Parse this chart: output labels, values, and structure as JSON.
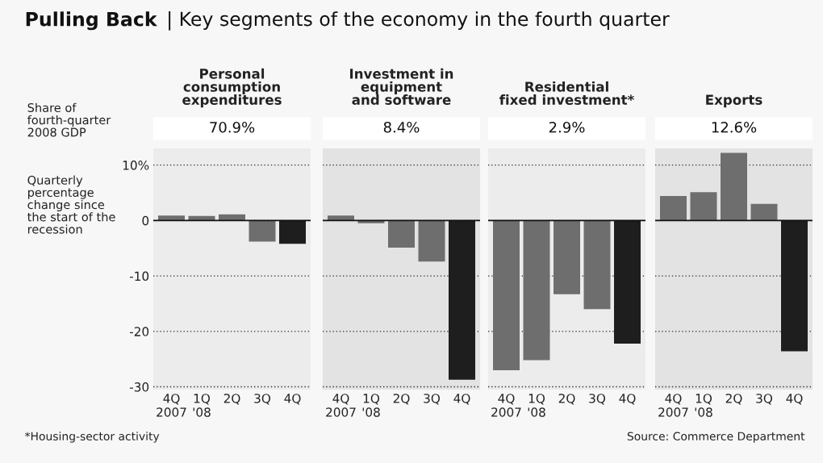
{
  "chart_data": [
    {
      "type": "bar",
      "title": "Personal\nconsumption\nexpenditures",
      "subtitle": "70.9%",
      "categories": [
        "4Q\n2007",
        "1Q\n'08",
        "2Q",
        "3Q",
        "4Q"
      ],
      "values": [
        0.9,
        0.8,
        1.1,
        -3.8,
        -4.2
      ],
      "colors": [
        "#6e6e6e",
        "#6e6e6e",
        "#6e6e6e",
        "#6e6e6e",
        "#1e1e1e"
      ],
      "ylim": [
        -30.5,
        13
      ],
      "yticks": [
        {
          "value": 10,
          "label": "10%"
        },
        0,
        -10,
        -20,
        -30
      ],
      "grid": "y",
      "annotations": [
        "Pulling Back | Key segments of the economy in the fourth quarter",
        "Share of\nfourth-quarter\n2008 GDP",
        "Quarterly\npercentage\nchange since\nthe start of the\nrecession",
        "*Housing-sector activity"
      ]
    },
    {
      "type": "bar",
      "title": "Investment in\nequipment\nand software",
      "subtitle": "8.4%",
      "categories": [
        "4Q\n2007",
        "1Q\n'08",
        "2Q",
        "3Q",
        "4Q"
      ],
      "values": [
        0.9,
        -0.5,
        -4.9,
        -7.4,
        -28.7
      ],
      "colors": [
        "#6e6e6e",
        "#6e6e6e",
        "#6e6e6e",
        "#6e6e6e",
        "#1e1e1e"
      ],
      "ylim": [
        -30.5,
        13
      ],
      "yticks": [
        10,
        0,
        -10,
        -20,
        -30
      ],
      "grid": "y",
      "tick_labels": "x"
    },
    {
      "type": "bar",
      "title": "Residential\nfixed investment*",
      "subtitle": "2.9%",
      "categories": [
        "4Q\n2007",
        "1Q\n'08",
        "2Q",
        "3Q",
        "4Q"
      ],
      "values": [
        -27.0,
        -25.2,
        -13.3,
        -16.0,
        -22.2
      ],
      "colors": [
        "#6e6e6e",
        "#6e6e6e",
        "#6e6e6e",
        "#6e6e6e",
        "#1e1e1e"
      ],
      "ylim": [
        -30.5,
        13
      ],
      "yticks": [
        10,
        0,
        -10,
        -20,
        -30
      ],
      "grid": "y",
      "tick_labels": "x"
    },
    {
      "type": "bar",
      "title": "Exports",
      "subtitle": "12.6%",
      "categories": [
        "4Q\n2007",
        "1Q\n'08",
        "2Q",
        "3Q",
        "4Q"
      ],
      "values": [
        4.4,
        5.1,
        12.2,
        3.0,
        -23.6
      ],
      "colors": [
        "#6e6e6e",
        "#6e6e6e",
        "#6e6e6e",
        "#6e6e6e",
        "#1e1e1e"
      ],
      "ylim": [
        -30.5,
        13
      ],
      "yticks": [
        10,
        0,
        -10,
        -20,
        -30
      ],
      "grid": "y",
      "tick_labels": "x",
      "annotations": [
        "Source: Commerce Department"
      ]
    }
  ]
}
